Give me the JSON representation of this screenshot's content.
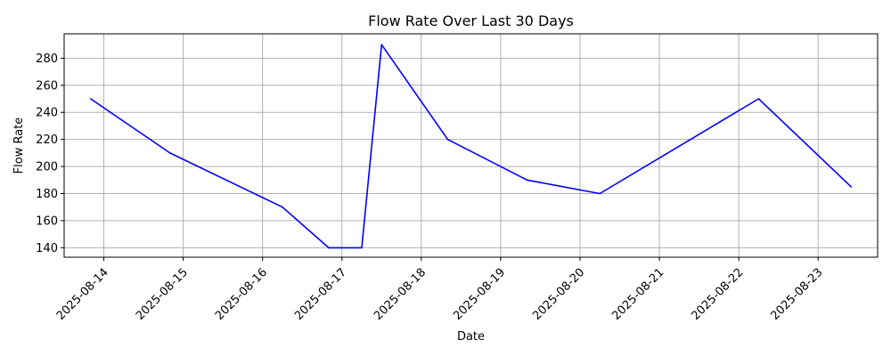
{
  "chart_data": {
    "type": "line",
    "title": "Flow Rate Over Last 30 Days",
    "xlabel": "Date",
    "ylabel": "Flow Rate",
    "grid": true,
    "x_ticks": [
      "2025-08-14",
      "2025-08-15",
      "2025-08-16",
      "2025-08-17",
      "2025-08-18",
      "2025-08-19",
      "2025-08-20",
      "2025-08-21",
      "2025-08-22",
      "2025-08-23"
    ],
    "y_ticks": [
      140,
      160,
      180,
      200,
      220,
      240,
      260,
      280
    ],
    "xlim": [
      "2025-08-13T12:00",
      "2025-08-23T18:00"
    ],
    "ylim": [
      133,
      298
    ],
    "series": [
      {
        "color": "#0000ff",
        "x": [
          "2025-08-13T20:00",
          "2025-08-14T20:00",
          "2025-08-16T06:00",
          "2025-08-16T20:00",
          "2025-08-17T06:00",
          "2025-08-17T12:00",
          "2025-08-18T08:00",
          "2025-08-19T08:00",
          "2025-08-20T06:00",
          "2025-08-22T06:00",
          "2025-08-23T10:00"
        ],
        "y": [
          250,
          210,
          170,
          140,
          140,
          290,
          220,
          190,
          180,
          250,
          185
        ]
      }
    ]
  }
}
